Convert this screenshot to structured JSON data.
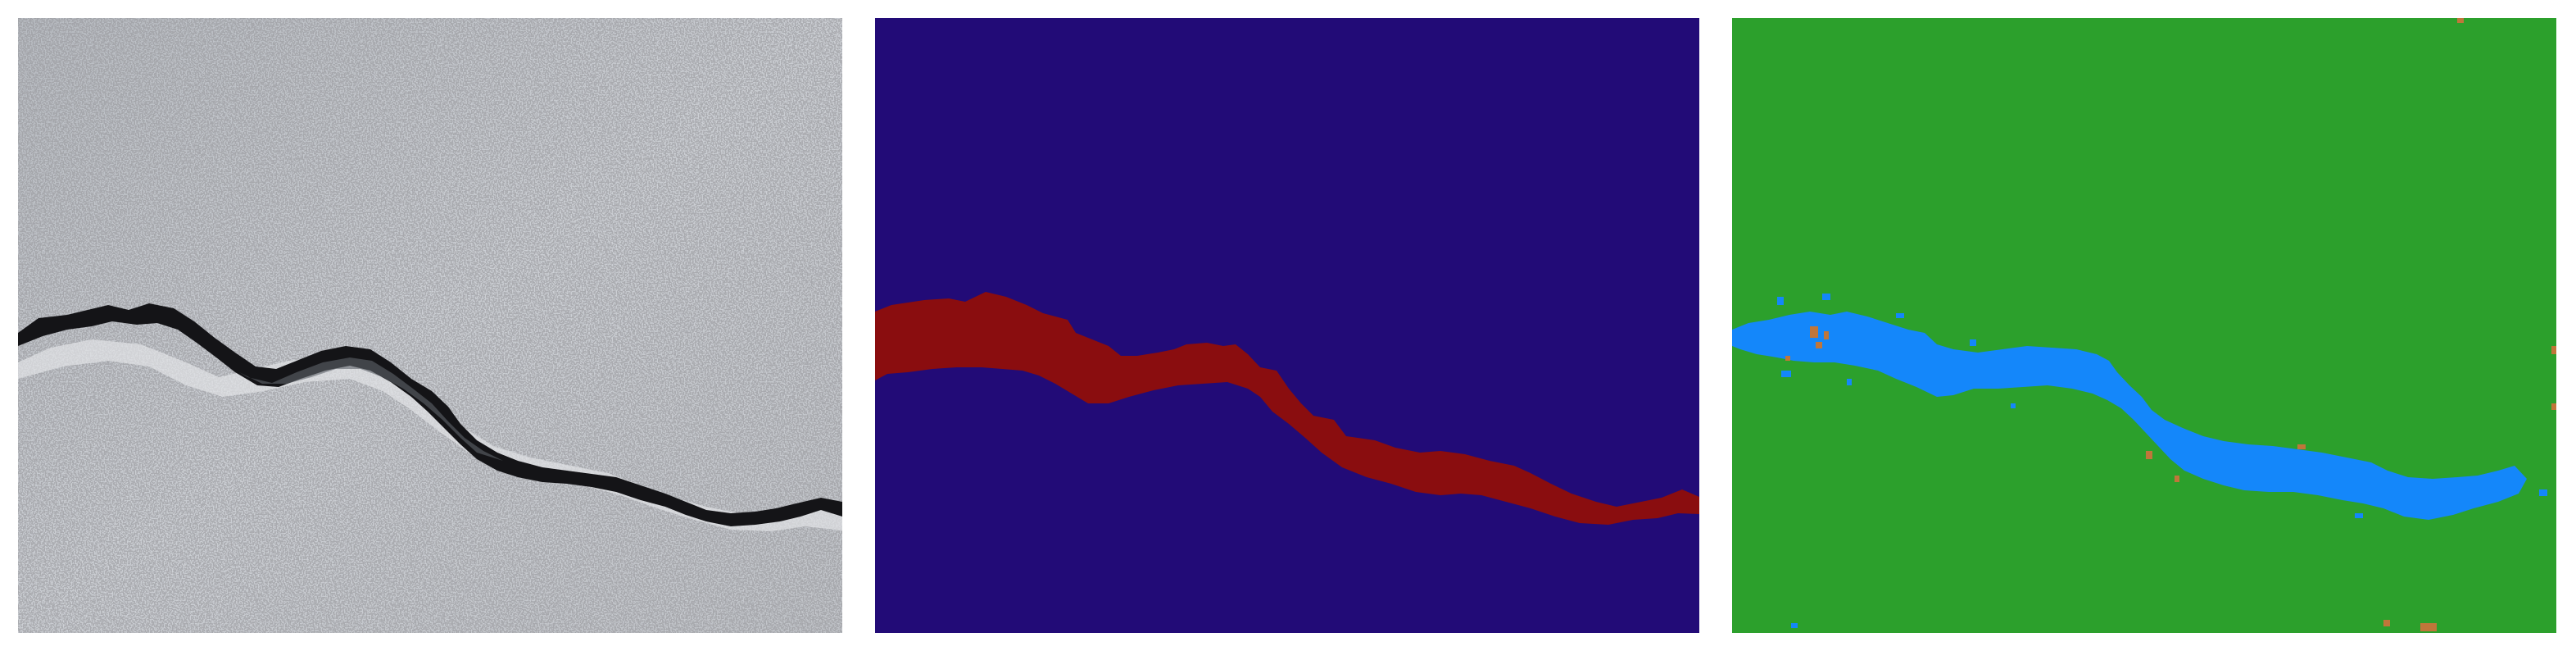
{
  "figure": {
    "panels": [
      {
        "id": "input-photo",
        "kind": "concrete surface photograph with crack"
      },
      {
        "id": "ground-truth-mask",
        "kind": "segmentation mask"
      },
      {
        "id": "predicted-mask",
        "kind": "segmentation mask"
      }
    ]
  },
  "colors": {
    "concrete": "#c9ccd1",
    "concrete_dark": "#aeb2b8",
    "crack_shadow": "#141417",
    "gt_background": "#220b77",
    "gt_crack": "#8a0d0f",
    "pred_background": "#2ca02c",
    "pred_crack": "#1487fa",
    "pred_noise": "#c0763a"
  }
}
